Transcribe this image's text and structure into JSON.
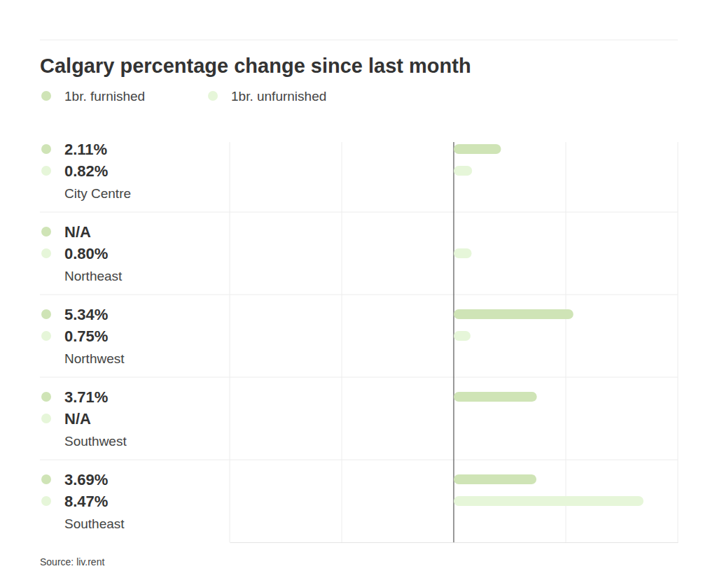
{
  "chart_data": {
    "type": "bar",
    "orientation": "horizontal",
    "title": "Calgary percentage change since last month",
    "categories": [
      "City Centre",
      "Northeast",
      "Northwest",
      "Southwest",
      "Southeast"
    ],
    "series": [
      {
        "name": "1br. furnished",
        "color": "#cfe4b6",
        "values": [
          2.11,
          null,
          5.34,
          3.71,
          3.69
        ],
        "value_labels": [
          "2.11%",
          "N/A",
          "5.34%",
          "3.71%",
          "3.69%"
        ]
      },
      {
        "name": "1br. unfurnished",
        "color": "#e6f6d9",
        "values": [
          0.82,
          0.8,
          0.75,
          null,
          8.47
        ],
        "value_labels": [
          "0.82%",
          "0.80%",
          "0.75%",
          "N/A",
          "8.47%"
        ]
      }
    ],
    "xlim": [
      -10,
      10
    ],
    "xticks": [
      -10,
      -5,
      0,
      5,
      10
    ],
    "grid": true,
    "tick_labels": false,
    "data_labels": true,
    "legend": "top-left",
    "source": "Source: liv.rent"
  }
}
